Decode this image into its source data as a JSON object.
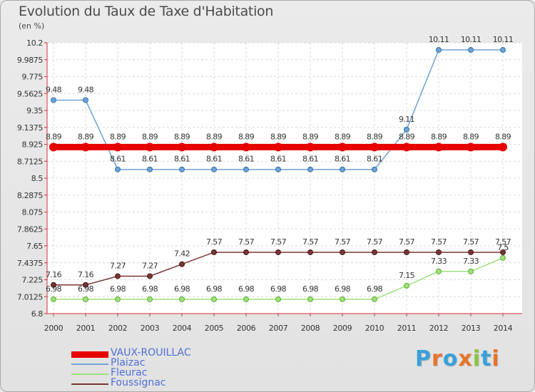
{
  "title": "Evolution du Taux de Taxe d'Habitation",
  "subtitle": "(en %)",
  "logo": {
    "text": "Proxiti",
    "colors": [
      "#3aa0d8",
      "#e8742b",
      "#3aa0d8",
      "#e8742b",
      "#8ac43f",
      "#3aa0d8",
      "#e8742b"
    ]
  },
  "chart_data": {
    "type": "line",
    "title": "Evolution du Taux de Taxe d'Habitation",
    "ylabel": "(en %)",
    "xlabel": "",
    "x": [
      "2000",
      "2001",
      "2002",
      "2003",
      "2004",
      "2005",
      "2006",
      "2007",
      "2008",
      "2009",
      "2010",
      "2011",
      "2012",
      "2013",
      "2014"
    ],
    "ylim": [
      6.8,
      10.2
    ],
    "yticks": [
      "6.8",
      "7.0125",
      "7.225",
      "7.4375",
      "7.65",
      "7.8625",
      "8.075",
      "8.2875",
      "8.5",
      "8.7125",
      "8.925",
      "9.1375",
      "9.35",
      "9.5625",
      "9.775",
      "9.9875",
      "10.2"
    ],
    "grid": true,
    "legend_position": "bottom-left",
    "series": [
      {
        "name": "VAUX-ROUILLAC",
        "color": "#e60000",
        "values": [
          8.89,
          8.89,
          8.89,
          8.89,
          8.89,
          8.89,
          8.89,
          8.89,
          8.89,
          8.89,
          8.89,
          8.89,
          8.89,
          8.89,
          8.89
        ],
        "labels": [
          "8.89",
          "8.89",
          "8.89",
          "8.89",
          "8.89",
          "8.89",
          "8.89",
          "8.89",
          "8.89",
          "8.89",
          "8.89",
          "8.89",
          "8.89",
          "8.89",
          "8.89"
        ],
        "label_color": "#333333",
        "legend_text_color": "#4d6fd6"
      },
      {
        "name": "Plaizac",
        "color": "#6fa3d6",
        "values": [
          9.48,
          9.48,
          8.61,
          8.61,
          8.61,
          8.61,
          8.61,
          8.61,
          8.61,
          8.61,
          8.61,
          9.11,
          10.11,
          10.11,
          10.11
        ],
        "labels": [
          "9.48",
          "9.48",
          "8.61",
          "8.61",
          "8.61",
          "8.61",
          "8.61",
          "8.61",
          "8.61",
          "8.61",
          "8.61",
          "9.11",
          "10.11",
          "10.11",
          "10.11"
        ],
        "label_color": "#333333",
        "legend_text_color": "#4d6fd6"
      },
      {
        "name": "Fleurac",
        "color": "#9ee07a",
        "values": [
          6.98,
          6.98,
          6.98,
          6.98,
          6.98,
          6.98,
          6.98,
          6.98,
          6.98,
          6.98,
          6.98,
          7.15,
          7.33,
          7.33,
          7.5
        ],
        "labels": [
          "6.98",
          "6.98",
          "6.98",
          "6.98",
          "6.98",
          "6.98",
          "6.98",
          "6.98",
          "6.98",
          "6.98",
          "6.98",
          "7.15",
          "7.33",
          "7.33",
          "7.5"
        ],
        "label_color": "#333333",
        "legend_text_color": "#4d6fd6"
      },
      {
        "name": "Foussignac",
        "color": "#7a3535",
        "values": [
          7.16,
          7.16,
          7.27,
          7.27,
          7.42,
          7.57,
          7.57,
          7.57,
          7.57,
          7.57,
          7.57,
          7.57,
          7.57,
          7.57,
          7.57
        ],
        "labels": [
          "7.16",
          "7.16",
          "7.27",
          "7.27",
          "7.42",
          "7.57",
          "7.57",
          "7.57",
          "7.57",
          "7.57",
          "7.57",
          "7.57",
          "7.57",
          "7.57",
          "7.57"
        ],
        "label_color": "#333333",
        "legend_text_color": "#4d6fd6"
      }
    ]
  }
}
